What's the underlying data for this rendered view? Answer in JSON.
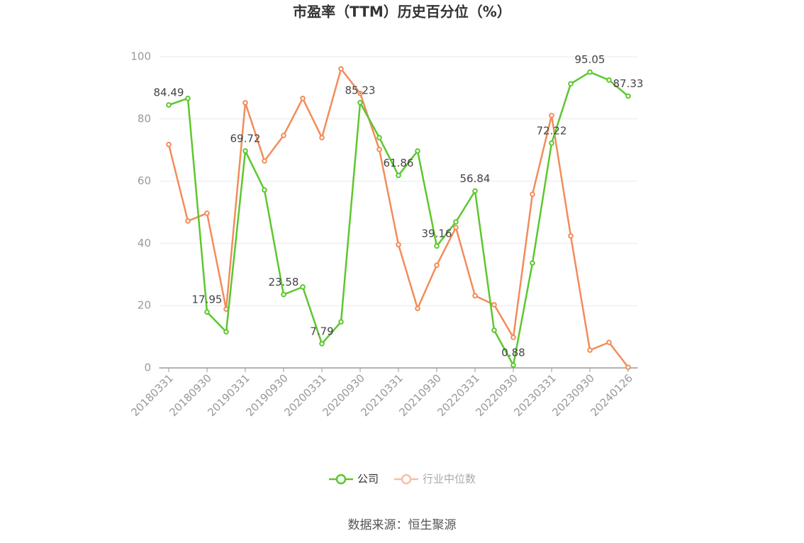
{
  "chart_data": {
    "type": "line",
    "title": "市盈率（TTM）历史百分位（%）",
    "source": "数据来源：恒生聚源",
    "categories": [
      "20180331",
      null,
      "20180930",
      null,
      "20190331",
      null,
      "20190930",
      null,
      "20200331",
      null,
      "20200930",
      null,
      "20210331",
      null,
      "20210930",
      null,
      "20220331",
      null,
      "20220930",
      null,
      "20230331",
      null,
      "20230930",
      null,
      "20240126"
    ],
    "series": [
      {
        "name": "公司",
        "color": "#5cc72e",
        "values": [
          84.49,
          86.6,
          17.95,
          11.6,
          69.72,
          57.2,
          23.58,
          26.0,
          7.79,
          14.8,
          85.23,
          74.0,
          61.86,
          69.7,
          39.16,
          46.9,
          56.84,
          12.1,
          0.88,
          33.7,
          72.22,
          91.3,
          95.05,
          92.5,
          87.33
        ],
        "value_labels": [
          "84.49",
          null,
          "17.95",
          null,
          "69.72",
          null,
          "23.58",
          null,
          "7.79",
          null,
          "85.23",
          null,
          "61.86",
          null,
          "39.16",
          null,
          "56.84",
          null,
          "0.88",
          null,
          "72.22",
          null,
          "95.05",
          null,
          "87.33"
        ]
      },
      {
        "name": "行业中位数",
        "color": "#f28c5a",
        "values": [
          71.8,
          47.2,
          49.7,
          18.9,
          85.2,
          66.5,
          74.7,
          86.6,
          74.0,
          96.1,
          88.2,
          70.2,
          39.6,
          19.1,
          33.0,
          45.1,
          23.2,
          20.3,
          9.8,
          55.8,
          81.1,
          42.4,
          5.7,
          8.2,
          0.2
        ]
      }
    ],
    "ylim": [
      0,
      100
    ],
    "yticks": [
      0,
      20,
      40,
      60,
      80,
      100
    ],
    "grid": true,
    "legend": "bottom"
  }
}
